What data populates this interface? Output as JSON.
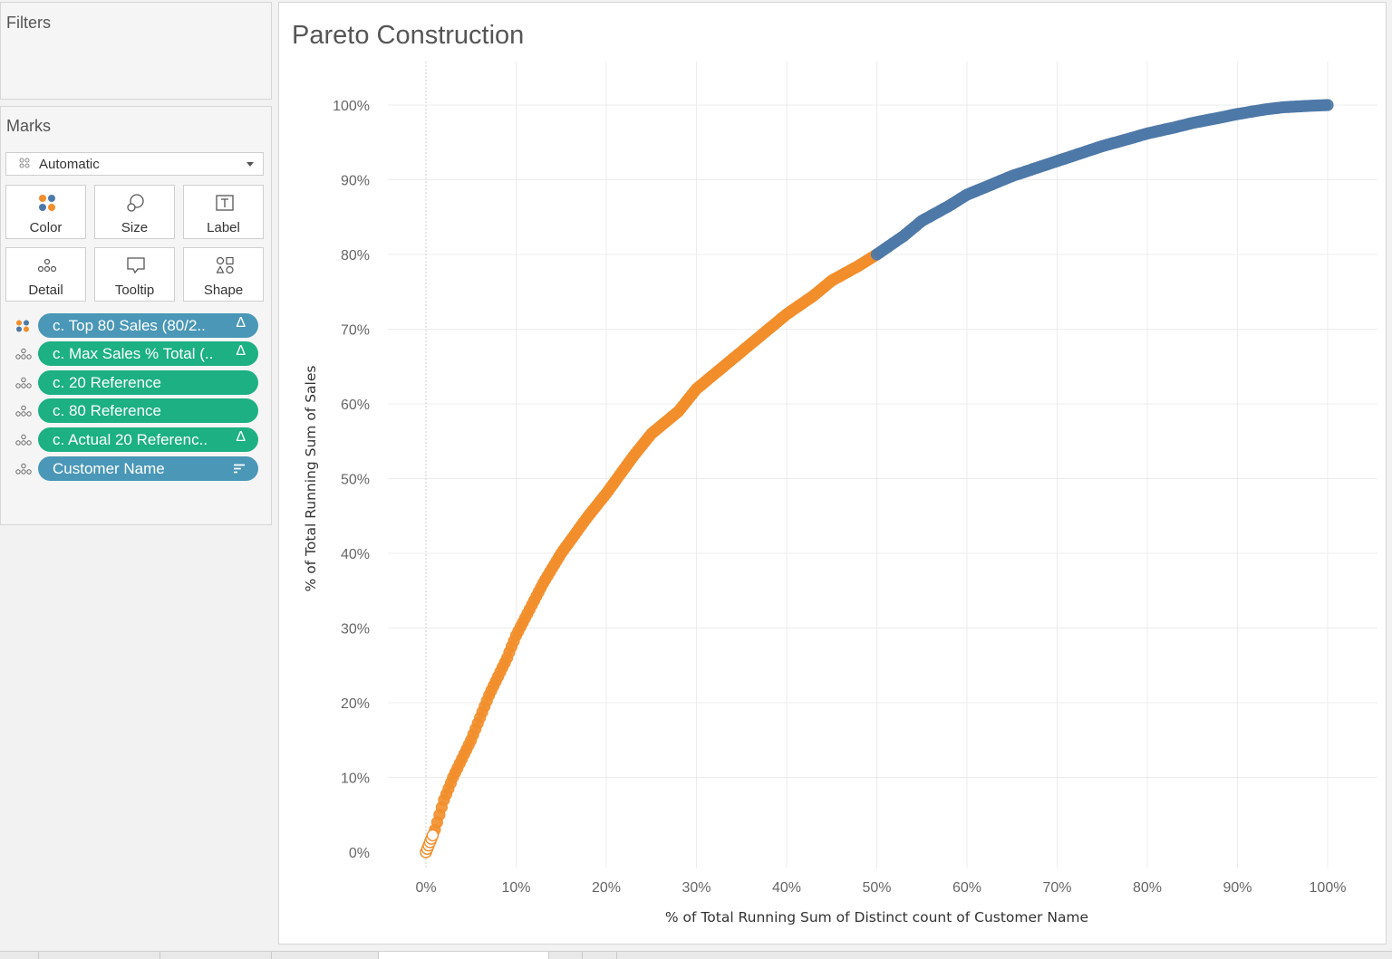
{
  "panels": {
    "filters_title": "Filters",
    "marks_title": "Marks"
  },
  "marks": {
    "mark_type": "Automatic",
    "cards": [
      {
        "label": "Color",
        "icon": "color-icon"
      },
      {
        "label": "Size",
        "icon": "size-icon"
      },
      {
        "label": "Label",
        "icon": "label-icon"
      },
      {
        "label": "Detail",
        "icon": "detail-icon"
      },
      {
        "label": "Tooltip",
        "icon": "tooltip-icon"
      },
      {
        "label": "Shape",
        "icon": "shape-icon"
      }
    ],
    "pills": [
      {
        "text": "c. Top 80 Sales (80/2..",
        "suffix": "Δ",
        "color": "#4a97b7",
        "icon": "color-icon"
      },
      {
        "text": "c. Max Sales % Total (..",
        "suffix": "Δ",
        "color": "#1cb083",
        "icon": "detail-icon"
      },
      {
        "text": "c. 20 Reference",
        "suffix": "",
        "color": "#1cb083",
        "icon": "detail-icon"
      },
      {
        "text": "c. 80 Reference",
        "suffix": "",
        "color": "#1cb083",
        "icon": "detail-icon"
      },
      {
        "text": "c. Actual 20 Referenc..",
        "suffix": "Δ",
        "color": "#1cb083",
        "icon": "detail-icon"
      },
      {
        "text": "Customer Name",
        "suffix": "",
        "color": "#4a97b7",
        "icon": "detail-icon",
        "suffix_icon": "sort-icon"
      }
    ]
  },
  "sheet": {
    "title": "Pareto Construction"
  },
  "chart_data": {
    "type": "scatter",
    "title": "Pareto Construction",
    "xlabel": "% of Total Running Sum of Distinct count of Customer Name",
    "ylabel": "% of Total Running Sum of Sales",
    "xlim": [
      0,
      1
    ],
    "ylim": [
      0,
      1
    ],
    "x_ticks": [
      "0%",
      "10%",
      "20%",
      "30%",
      "40%",
      "50%",
      "60%",
      "70%",
      "80%",
      "90%",
      "100%"
    ],
    "y_ticks": [
      "0%",
      "10%",
      "20%",
      "30%",
      "40%",
      "50%",
      "60%",
      "70%",
      "80%",
      "90%",
      "100%"
    ],
    "grid": true,
    "legend": "none",
    "series": [
      {
        "color": "#f28e2b",
        "points": [
          [
            0,
            0
          ],
          [
            0.01,
            0.03
          ],
          [
            0.02,
            0.07
          ],
          [
            0.03,
            0.1
          ],
          [
            0.05,
            0.15
          ],
          [
            0.07,
            0.21
          ],
          [
            0.09,
            0.26
          ],
          [
            0.1,
            0.29
          ],
          [
            0.13,
            0.36
          ],
          [
            0.15,
            0.4
          ],
          [
            0.18,
            0.45
          ],
          [
            0.2,
            0.48
          ],
          [
            0.23,
            0.53
          ],
          [
            0.25,
            0.56
          ],
          [
            0.28,
            0.59
          ],
          [
            0.3,
            0.62
          ],
          [
            0.33,
            0.65
          ],
          [
            0.35,
            0.67
          ],
          [
            0.38,
            0.7
          ],
          [
            0.4,
            0.72
          ],
          [
            0.43,
            0.745
          ],
          [
            0.45,
            0.765
          ],
          [
            0.48,
            0.785
          ],
          [
            0.5,
            0.8
          ]
        ]
      },
      {
        "color": "#4e79a7",
        "points": [
          [
            0.5,
            0.8
          ],
          [
            0.53,
            0.825
          ],
          [
            0.55,
            0.845
          ],
          [
            0.58,
            0.865
          ],
          [
            0.6,
            0.88
          ],
          [
            0.63,
            0.895
          ],
          [
            0.65,
            0.905
          ],
          [
            0.68,
            0.917
          ],
          [
            0.7,
            0.925
          ],
          [
            0.73,
            0.937
          ],
          [
            0.75,
            0.945
          ],
          [
            0.78,
            0.955
          ],
          [
            0.8,
            0.962
          ],
          [
            0.83,
            0.97
          ],
          [
            0.85,
            0.976
          ],
          [
            0.88,
            0.983
          ],
          [
            0.9,
            0.988
          ],
          [
            0.93,
            0.994
          ],
          [
            0.95,
            0.997
          ],
          [
            0.98,
            0.999
          ],
          [
            1.0,
            1.0
          ]
        ]
      }
    ]
  }
}
